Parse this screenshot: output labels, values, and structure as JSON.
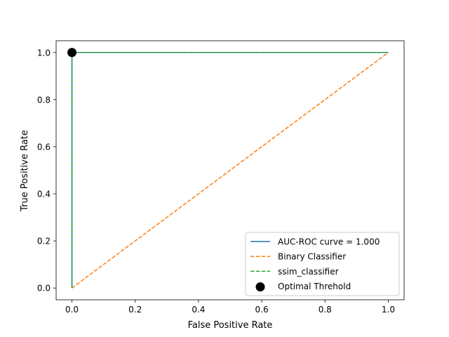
{
  "chart_data": {
    "type": "line",
    "xlabel": "False Positive Rate",
    "ylabel": "True Positive Rate",
    "xlim": [
      -0.05,
      1.05
    ],
    "ylim": [
      -0.05,
      1.05
    ],
    "x_ticks": [
      0.0,
      0.2,
      0.4,
      0.6,
      0.8,
      1.0
    ],
    "x_tick_labels": [
      "0.0",
      "0.2",
      "0.4",
      "0.6",
      "0.8",
      "1.0"
    ],
    "y_ticks": [
      0.0,
      0.2,
      0.4,
      0.6,
      0.8,
      1.0
    ],
    "y_tick_labels": [
      "0.0",
      "0.2",
      "0.4",
      "0.6",
      "0.8",
      "1.0"
    ],
    "grid": false,
    "legend_position": "lower-right",
    "series": [
      {
        "name": "AUC-ROC curve = 1.000",
        "style": "solid",
        "color": "#1f77b4",
        "x": [
          0.0,
          0.0,
          1.0
        ],
        "y": [
          0.0,
          1.0,
          1.0
        ]
      },
      {
        "name": "Binary Classifier",
        "style": "dashed",
        "color": "#ff7f0e",
        "x": [
          0.0,
          1.0
        ],
        "y": [
          0.0,
          1.0
        ]
      },
      {
        "name": "ssim_classifier",
        "style": "dashed",
        "color": "#2ca02c",
        "x": [
          0.0,
          0.0,
          1.0
        ],
        "y": [
          0.0,
          1.0,
          1.0
        ]
      }
    ],
    "points": [
      {
        "name": "Optimal Threhold",
        "color": "#000000",
        "x": 0.0,
        "y": 1.0
      }
    ]
  }
}
